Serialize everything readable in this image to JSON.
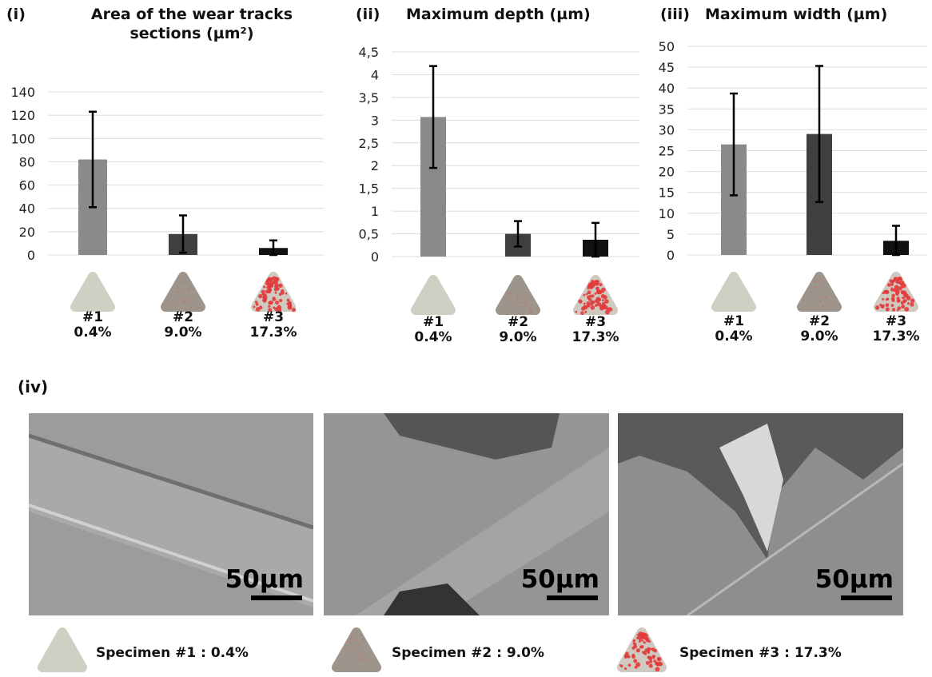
{
  "chart_data": [
    {
      "type": "bar",
      "panel": "(i)",
      "title": "Area of the wear tracks sections (µm²)",
      "categories": [
        "#1",
        "#2",
        "#3"
      ],
      "category_sublabels": [
        "0.4%",
        "9.0%",
        "17.3%"
      ],
      "values": [
        82,
        18,
        6
      ],
      "errors": [
        41,
        16,
        6.5
      ],
      "colors": [
        "#8a8a8a",
        "#3f3f3f",
        "#111111"
      ],
      "ylim": [
        0,
        140
      ],
      "yticks": [
        0,
        20,
        40,
        60,
        80,
        100,
        120,
        140
      ],
      "grid": true
    },
    {
      "type": "bar",
      "panel": "(ii)",
      "title": "Maximum depth (µm)",
      "categories": [
        "#1",
        "#2",
        "#3"
      ],
      "category_sublabels": [
        "0.4%",
        "9.0%",
        "17.3%"
      ],
      "values": [
        3.07,
        0.5,
        0.37
      ],
      "errors": [
        1.12,
        0.28,
        0.37
      ],
      "colors": [
        "#8a8a8a",
        "#3f3f3f",
        "#111111"
      ],
      "ylim": [
        0,
        4.5
      ],
      "yticks": [
        0,
        {
          "value": 0.5,
          "label": "0,5"
        },
        1,
        {
          "value": 1.5,
          "label": "1,5"
        },
        2,
        {
          "value": 2.5,
          "label": "2,5"
        },
        3,
        {
          "value": 3.5,
          "label": "3,5"
        },
        4,
        {
          "value": 4.5,
          "label": "4,5"
        }
      ],
      "grid": true
    },
    {
      "type": "bar",
      "panel": "(iii)",
      "title": "Maximum width (µm)",
      "categories": [
        "#1",
        "#2",
        "#3"
      ],
      "category_sublabels": [
        "0.4%",
        "9.0%",
        "17.3%"
      ],
      "values": [
        26.5,
        29,
        3.4
      ],
      "errors": [
        12.2,
        16.3,
        3.6
      ],
      "colors": [
        "#8a8a8a",
        "#3f3f3f",
        "#111111"
      ],
      "ylim": [
        0,
        50
      ],
      "yticks": [
        0,
        5,
        10,
        15,
        20,
        25,
        30,
        35,
        40,
        45,
        50
      ],
      "grid": true
    }
  ],
  "micrographs": {
    "panel": "(iv)",
    "scale_bars": [
      "50µm",
      "50µm",
      "50µm"
    ]
  },
  "legend": [
    "Specimen #1 : 0.4%",
    "Specimen #2 : 9.0%",
    "Specimen #3 : 17.3%"
  ]
}
